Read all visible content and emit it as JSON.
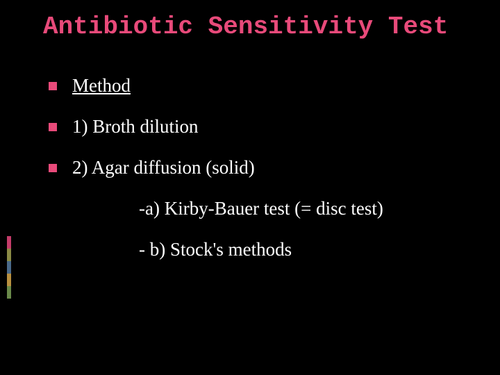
{
  "slide": {
    "title": "Antibiotic Sensitivity Test",
    "title_color": "#e84a7a",
    "title_fontsize": 36,
    "title_font": "Consolas, Courier New, monospace",
    "background_color": "#000000",
    "text_color": "#ffffff",
    "body_fontsize": 27,
    "body_font": "Georgia, Times New Roman, serif",
    "bullet_color": "#e84a7a",
    "accent_colors": [
      "#c43c6a",
      "#8a8a45",
      "#4a6a8a",
      "#b89040",
      "#6a8a4a"
    ],
    "content": {
      "heading": "Method",
      "items": [
        {
          "label": "1)  Broth dilution"
        },
        {
          "label": "2)  Agar diffusion (solid)",
          "subitems": [
            "-a)  Kirby-Bauer test (= disc test)",
            "- b)  Stock's methods"
          ]
        }
      ]
    }
  }
}
